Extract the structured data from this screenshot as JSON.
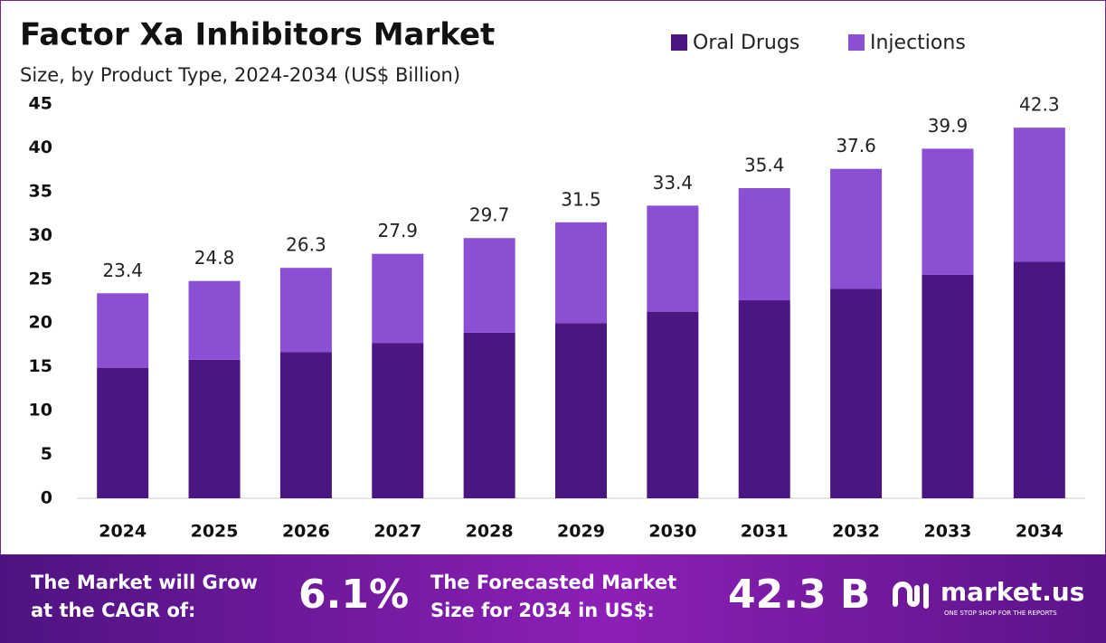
{
  "chart_data": {
    "type": "stacked_bar",
    "title": "Factor Xa Inhibitors Market",
    "subtitle": "Size, by Product Type, 2024-2034 (US$ Billion)",
    "categories": [
      "2024",
      "2025",
      "2026",
      "2027",
      "2028",
      "2029",
      "2030",
      "2031",
      "2032",
      "2033",
      "2034"
    ],
    "series": [
      {
        "name": "Oral Drugs",
        "color": "#4b1582",
        "values": [
          14.9,
          15.8,
          16.7,
          17.7,
          18.9,
          20.0,
          21.3,
          22.6,
          23.9,
          25.5,
          27.0
        ]
      },
      {
        "name": "Injections",
        "color": "#8b4fd3",
        "values": [
          8.5,
          9.0,
          9.6,
          10.2,
          10.8,
          11.5,
          12.1,
          12.8,
          13.7,
          14.4,
          15.3
        ]
      }
    ],
    "totals": [
      23.4,
      24.8,
      26.3,
      27.9,
      29.7,
      31.5,
      33.4,
      35.4,
      37.6,
      39.9,
      42.3
    ],
    "ylim": [
      0,
      45
    ],
    "yticks": [
      0,
      5,
      10,
      15,
      20,
      25,
      30,
      35,
      40,
      45
    ],
    "grid": false,
    "legend": "top-right"
  },
  "footer": {
    "cagr_text": [
      "The Market will Grow",
      "at the CAGR of:"
    ],
    "cagr_value": "6.1%",
    "forecast_text": [
      "The Forecasted Market",
      "Size for 2034 in US$:"
    ],
    "forecast_value": "42.3 B",
    "brand": "market.us",
    "tagline": "ONE STOP SHOP FOR THE REPORTS"
  }
}
